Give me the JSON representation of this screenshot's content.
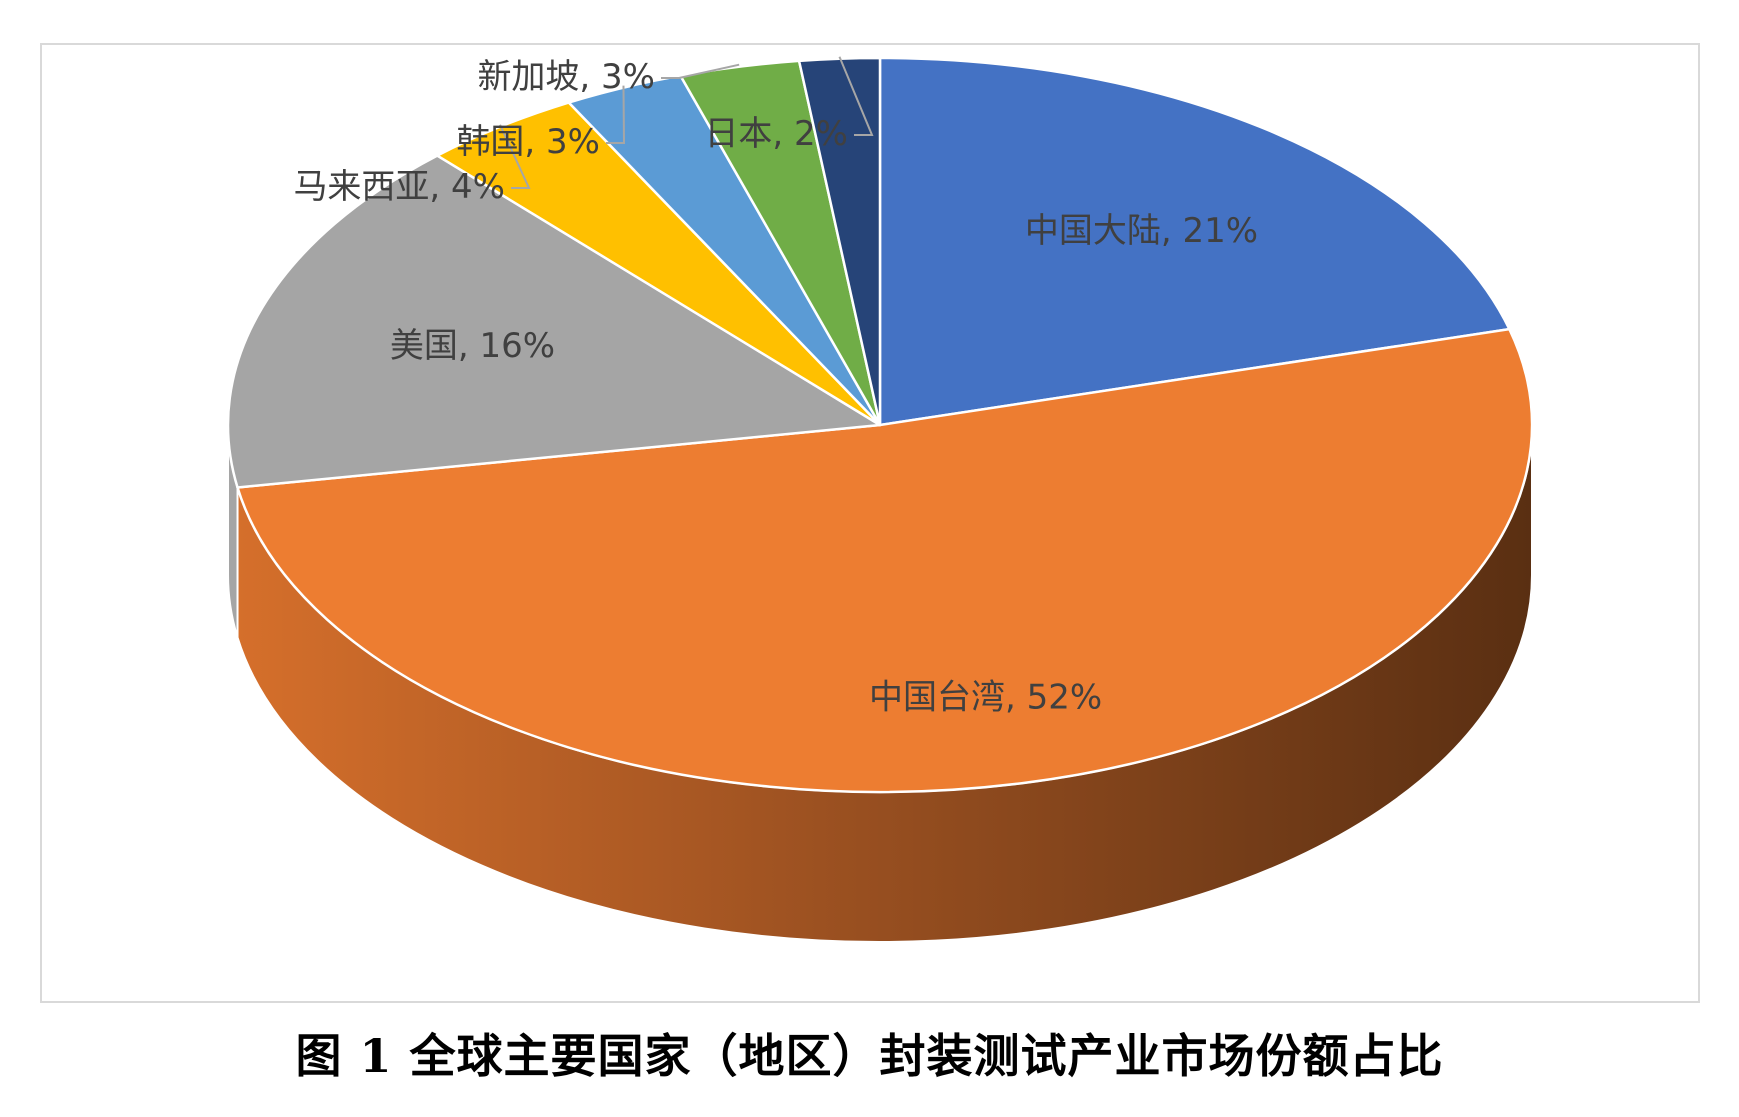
{
  "caption": "图 1 全球主要国家（地区）封装测试产业市场份额占比",
  "chart_data": {
    "type": "pie",
    "title": "",
    "slices": [
      {
        "name": "中国大陆",
        "value": 21,
        "label": "中国大陆, 21%",
        "color": "#4472C4"
      },
      {
        "name": "中国台湾",
        "value": 52,
        "label": "中国台湾, 52%",
        "color": "#ED7D31"
      },
      {
        "name": "美国",
        "value": 16,
        "label": "美国, 16%",
        "color": "#A5A5A5"
      },
      {
        "name": "马来西亚",
        "value": 4,
        "label": "马来西亚, 4%",
        "color": "#FFC000"
      },
      {
        "name": "韩国",
        "value": 3,
        "label": "韩国, 3%",
        "color": "#5B9BD5"
      },
      {
        "name": "新加坡",
        "value": 3,
        "label": "新加坡, 3%",
        "color": "#70AD47"
      },
      {
        "name": "日本",
        "value": 2,
        "label": "日本, 2%",
        "color": "#264478"
      }
    ],
    "style": "3d-pie",
    "legend": "none",
    "data_labels": "name, percent"
  }
}
